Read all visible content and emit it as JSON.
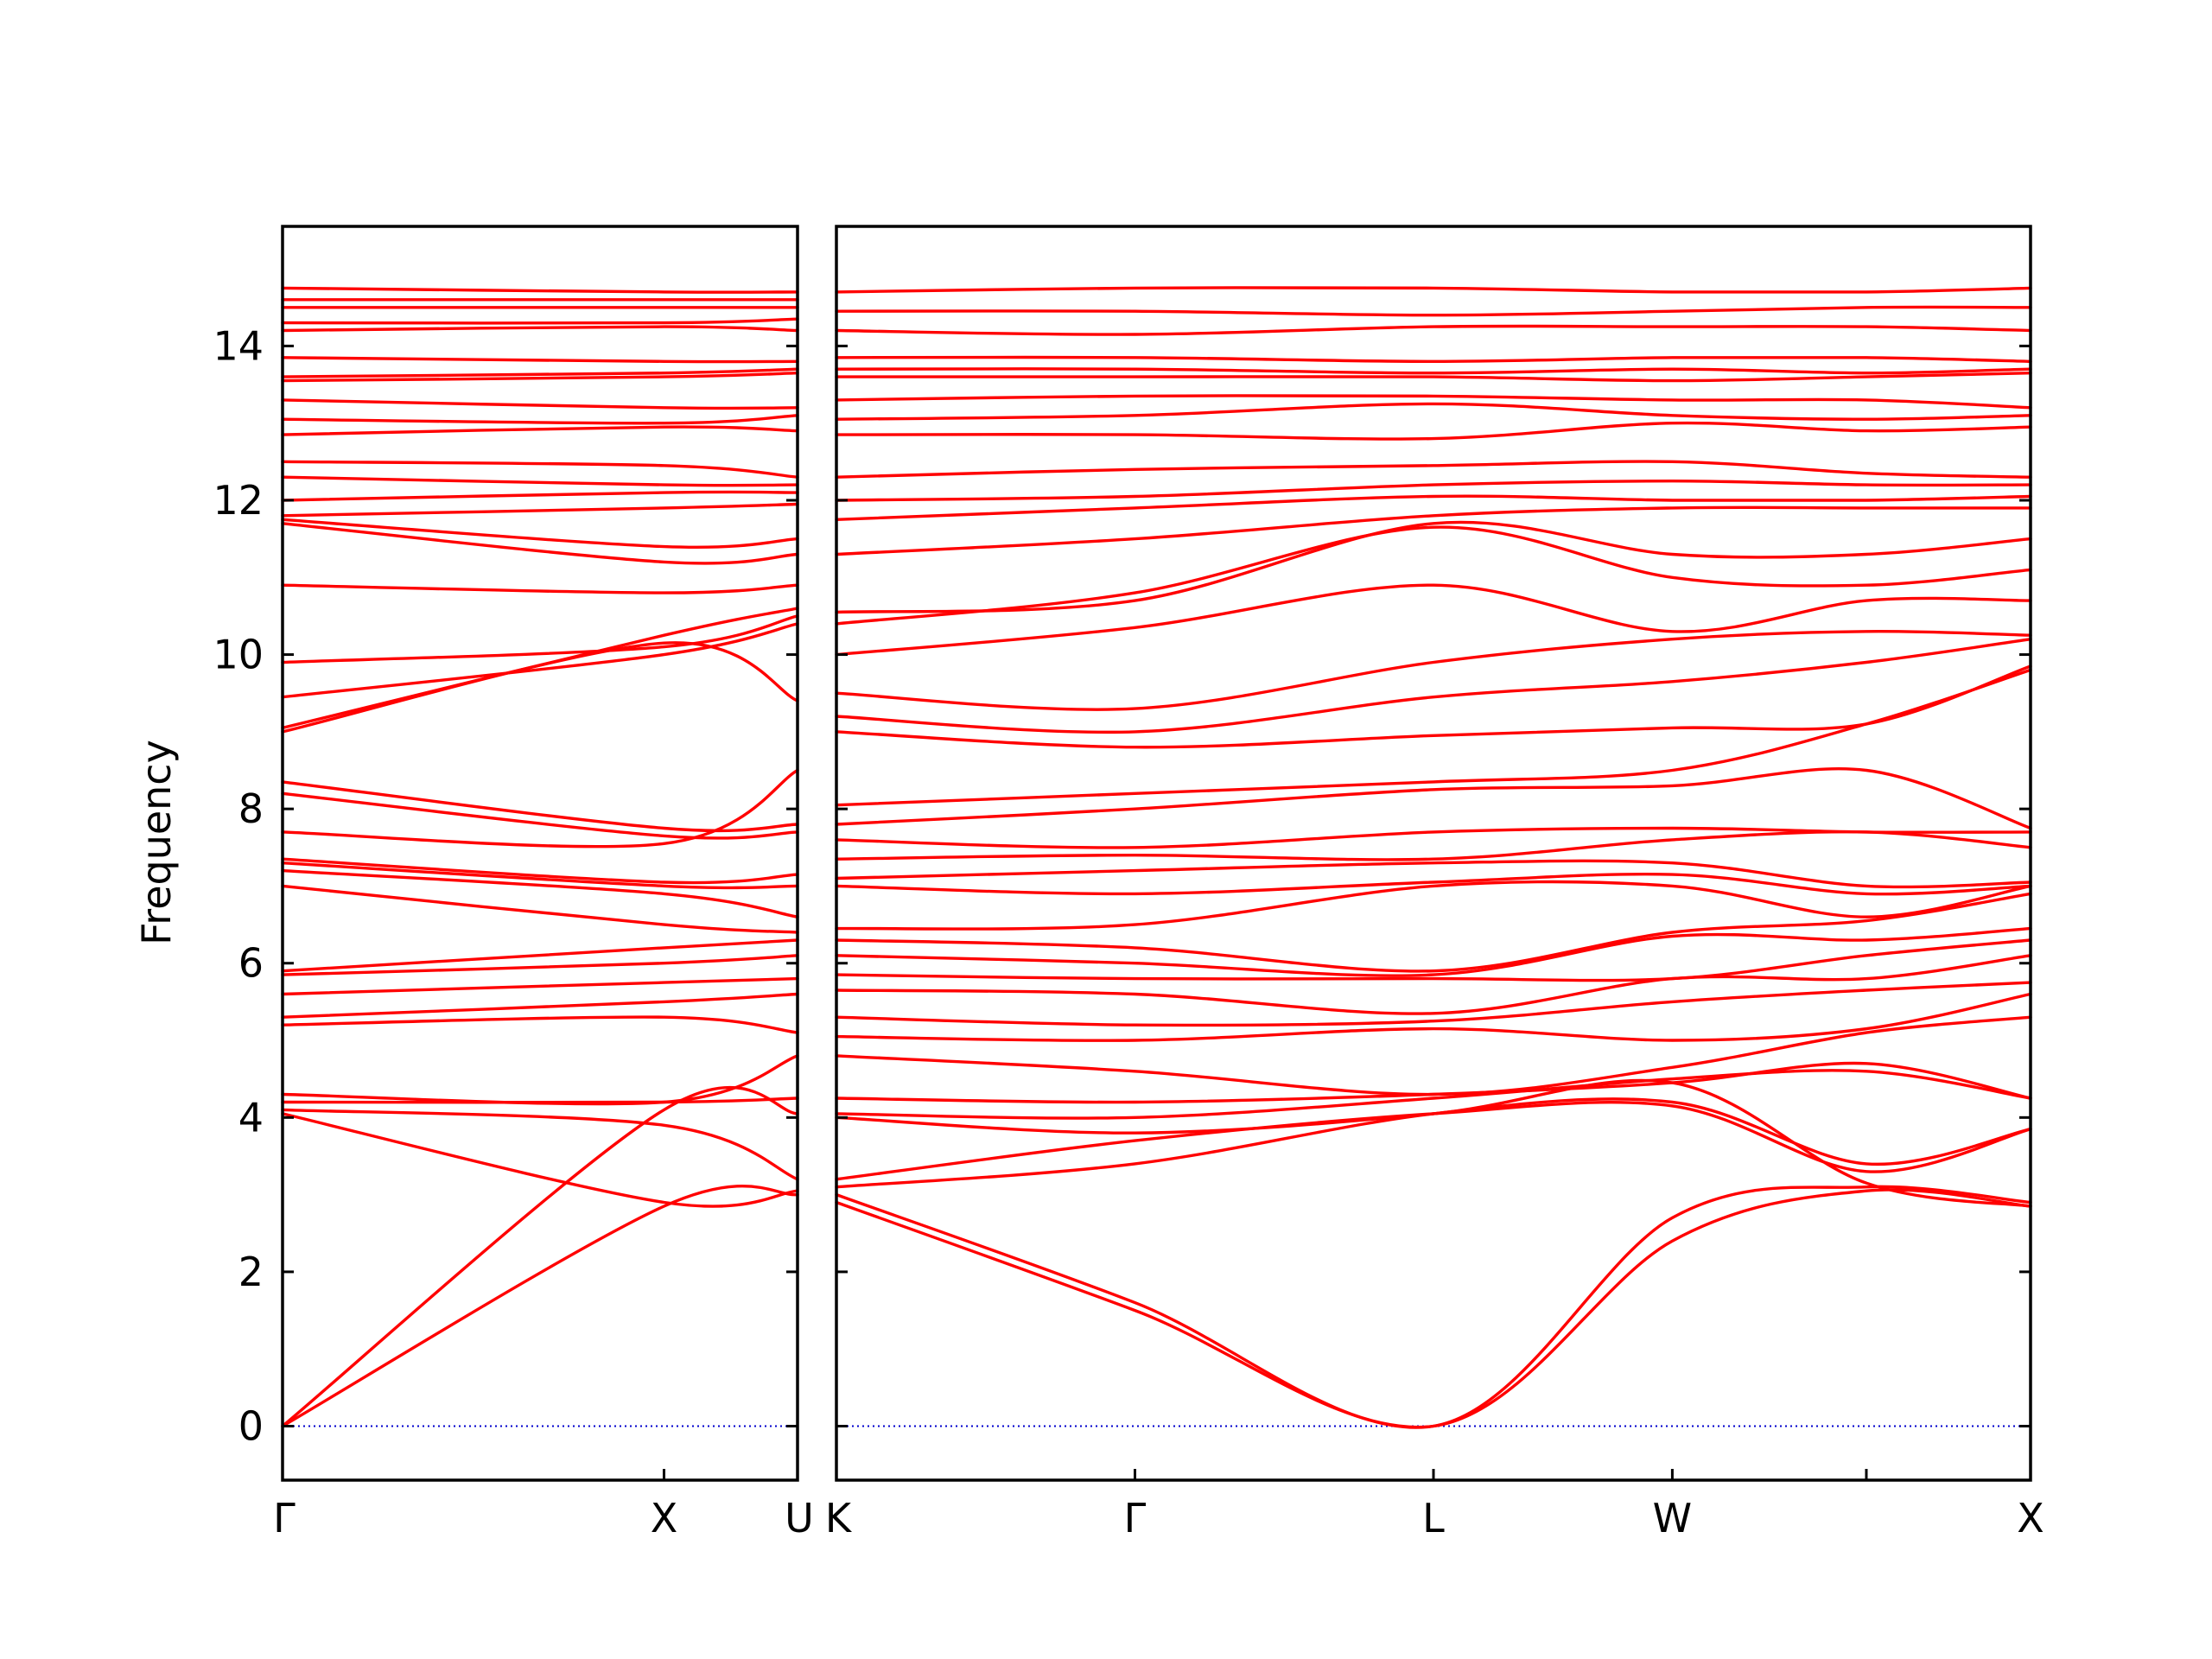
{
  "chart_data": {
    "type": "line",
    "title": "",
    "ylabel": "Frequency",
    "xlabel": "",
    "ylim": [
      -0.7,
      15.55
    ],
    "yticks": [
      0,
      2,
      4,
      6,
      8,
      10,
      12,
      14
    ],
    "ytick_labels": [
      "0",
      "2",
      "4",
      "6",
      "8",
      "10",
      "12",
      "14"
    ],
    "grid": false,
    "colors": {
      "bands": "#ff0000",
      "zero_line": "#0000cc",
      "frame": "#000000"
    },
    "panels": [
      {
        "name": "panel-left",
        "x": [
          0,
          1,
          1.35
        ],
        "xtick_labels": [
          "Γ",
          "X",
          "U"
        ],
        "bands": [
          [
            0,
            4.1,
            4.05
          ],
          [
            0,
            2.85,
            3.0
          ],
          [
            4.05,
            2.9,
            3.05
          ],
          [
            4.1,
            3.9,
            3.2
          ],
          [
            4.2,
            4.2,
            4.25
          ],
          [
            4.3,
            4.2,
            4.8
          ],
          [
            5.2,
            5.3,
            5.1
          ],
          [
            5.3,
            5.5,
            5.6
          ],
          [
            5.6,
            5.75,
            5.8
          ],
          [
            5.85,
            6.0,
            6.1
          ],
          [
            5.9,
            6.2,
            6.3
          ],
          [
            7.0,
            6.5,
            6.4
          ],
          [
            7.2,
            6.9,
            6.6
          ],
          [
            7.3,
            7.0,
            7.0
          ],
          [
            7.35,
            7.05,
            7.15
          ],
          [
            7.7,
            7.55,
            8.5
          ],
          [
            8.2,
            7.65,
            7.7
          ],
          [
            8.35,
            7.75,
            7.8
          ],
          [
            9.0,
            10.15,
            9.4
          ],
          [
            9.05,
            10.25,
            10.6
          ],
          [
            9.45,
            10.0,
            10.4
          ],
          [
            9.9,
            10.1,
            10.5
          ],
          [
            10.9,
            10.8,
            10.9
          ],
          [
            11.7,
            11.2,
            11.3
          ],
          [
            11.75,
            11.4,
            11.5
          ],
          [
            11.8,
            11.9,
            11.95
          ],
          [
            12.0,
            12.1,
            12.1
          ],
          [
            12.3,
            12.2,
            12.2
          ],
          [
            12.5,
            12.45,
            12.3
          ],
          [
            12.85,
            12.95,
            12.9
          ],
          [
            13.05,
            13.0,
            13.1
          ],
          [
            13.3,
            13.2,
            13.2
          ],
          [
            13.55,
            13.6,
            13.65
          ],
          [
            13.6,
            13.65,
            13.7
          ],
          [
            13.85,
            13.8,
            13.8
          ],
          [
            14.2,
            14.25,
            14.2
          ],
          [
            14.3,
            14.3,
            14.35
          ],
          [
            14.5,
            14.5,
            14.5
          ],
          [
            14.6,
            14.6,
            14.6
          ],
          [
            14.75,
            14.7,
            14.7
          ]
        ]
      },
      {
        "name": "panel-right",
        "x": [
          0,
          0.5,
          1,
          1.4,
          1.725,
          2
        ],
        "xtick_labels": [
          "K",
          "Γ",
          "L",
          "W",
          "X"
        ],
        "bands": [
          [
            2.9,
            1.5,
            0,
            2.4,
            3.05,
            2.85
          ],
          [
            3.0,
            1.6,
            0,
            2.7,
            3.1,
            2.9
          ],
          [
            3.1,
            3.4,
            4.05,
            4.2,
            3.4,
            3.85
          ],
          [
            3.2,
            3.7,
            4.05,
            4.15,
            3.3,
            3.85
          ],
          [
            4.0,
            3.8,
            4.05,
            4.45,
            3.15,
            2.85
          ],
          [
            4.05,
            4.0,
            4.25,
            4.5,
            4.6,
            4.25
          ],
          [
            4.25,
            4.2,
            4.3,
            4.45,
            4.7,
            4.25
          ],
          [
            4.8,
            4.6,
            4.3,
            4.65,
            5.1,
            5.3
          ],
          [
            5.05,
            5.0,
            5.15,
            5.0,
            5.15,
            5.6
          ],
          [
            5.3,
            5.2,
            5.25,
            5.5,
            5.65,
            5.75
          ],
          [
            5.65,
            5.6,
            5.35,
            5.8,
            5.8,
            6.1
          ],
          [
            5.85,
            5.8,
            5.8,
            5.8,
            6.1,
            6.3
          ],
          [
            6.1,
            6.0,
            5.85,
            6.35,
            6.3,
            6.45
          ],
          [
            6.3,
            6.2,
            5.9,
            6.4,
            6.55,
            6.9
          ],
          [
            6.45,
            6.5,
            7.0,
            7.0,
            6.6,
            7.0
          ],
          [
            7.0,
            6.9,
            7.05,
            7.15,
            6.9,
            7.0
          ],
          [
            7.1,
            7.2,
            7.3,
            7.3,
            7.0,
            7.05
          ],
          [
            7.35,
            7.4,
            7.35,
            7.6,
            7.7,
            7.5
          ],
          [
            7.6,
            7.5,
            7.7,
            7.75,
            7.7,
            7.7
          ],
          [
            7.8,
            8.0,
            8.25,
            8.3,
            8.5,
            7.75
          ],
          [
            8.05,
            8.2,
            8.35,
            8.5,
            9.1,
            9.8
          ],
          [
            9.0,
            8.8,
            8.95,
            9.05,
            9.1,
            9.85
          ],
          [
            9.2,
            9.0,
            9.45,
            9.65,
            9.9,
            10.2
          ],
          [
            9.5,
            9.3,
            9.9,
            10.2,
            10.3,
            10.25
          ],
          [
            10.0,
            10.35,
            10.9,
            10.3,
            10.7,
            10.7
          ],
          [
            10.4,
            10.8,
            11.65,
            11.0,
            10.9,
            11.1
          ],
          [
            10.55,
            10.7,
            11.7,
            11.3,
            11.3,
            11.5
          ],
          [
            11.3,
            11.5,
            11.8,
            11.9,
            11.9,
            11.9
          ],
          [
            11.75,
            11.9,
            12.05,
            12.0,
            12.0,
            12.05
          ],
          [
            12.0,
            12.05,
            12.2,
            12.25,
            12.2,
            12.2
          ],
          [
            12.3,
            12.4,
            12.45,
            12.5,
            12.35,
            12.3
          ],
          [
            12.85,
            12.85,
            12.8,
            13.0,
            12.9,
            12.95
          ],
          [
            13.05,
            13.1,
            13.25,
            13.1,
            13.05,
            13.1
          ],
          [
            13.3,
            13.35,
            13.35,
            13.3,
            13.3,
            13.2
          ],
          [
            13.6,
            13.6,
            13.6,
            13.55,
            13.6,
            13.65
          ],
          [
            13.7,
            13.7,
            13.65,
            13.7,
            13.65,
            13.7
          ],
          [
            13.85,
            13.85,
            13.8,
            13.85,
            13.85,
            13.8
          ],
          [
            14.2,
            14.15,
            14.25,
            14.25,
            14.25,
            14.2
          ],
          [
            14.45,
            14.45,
            14.4,
            14.45,
            14.5,
            14.5
          ],
          [
            14.7,
            14.75,
            14.75,
            14.7,
            14.7,
            14.75
          ]
        ]
      }
    ]
  }
}
